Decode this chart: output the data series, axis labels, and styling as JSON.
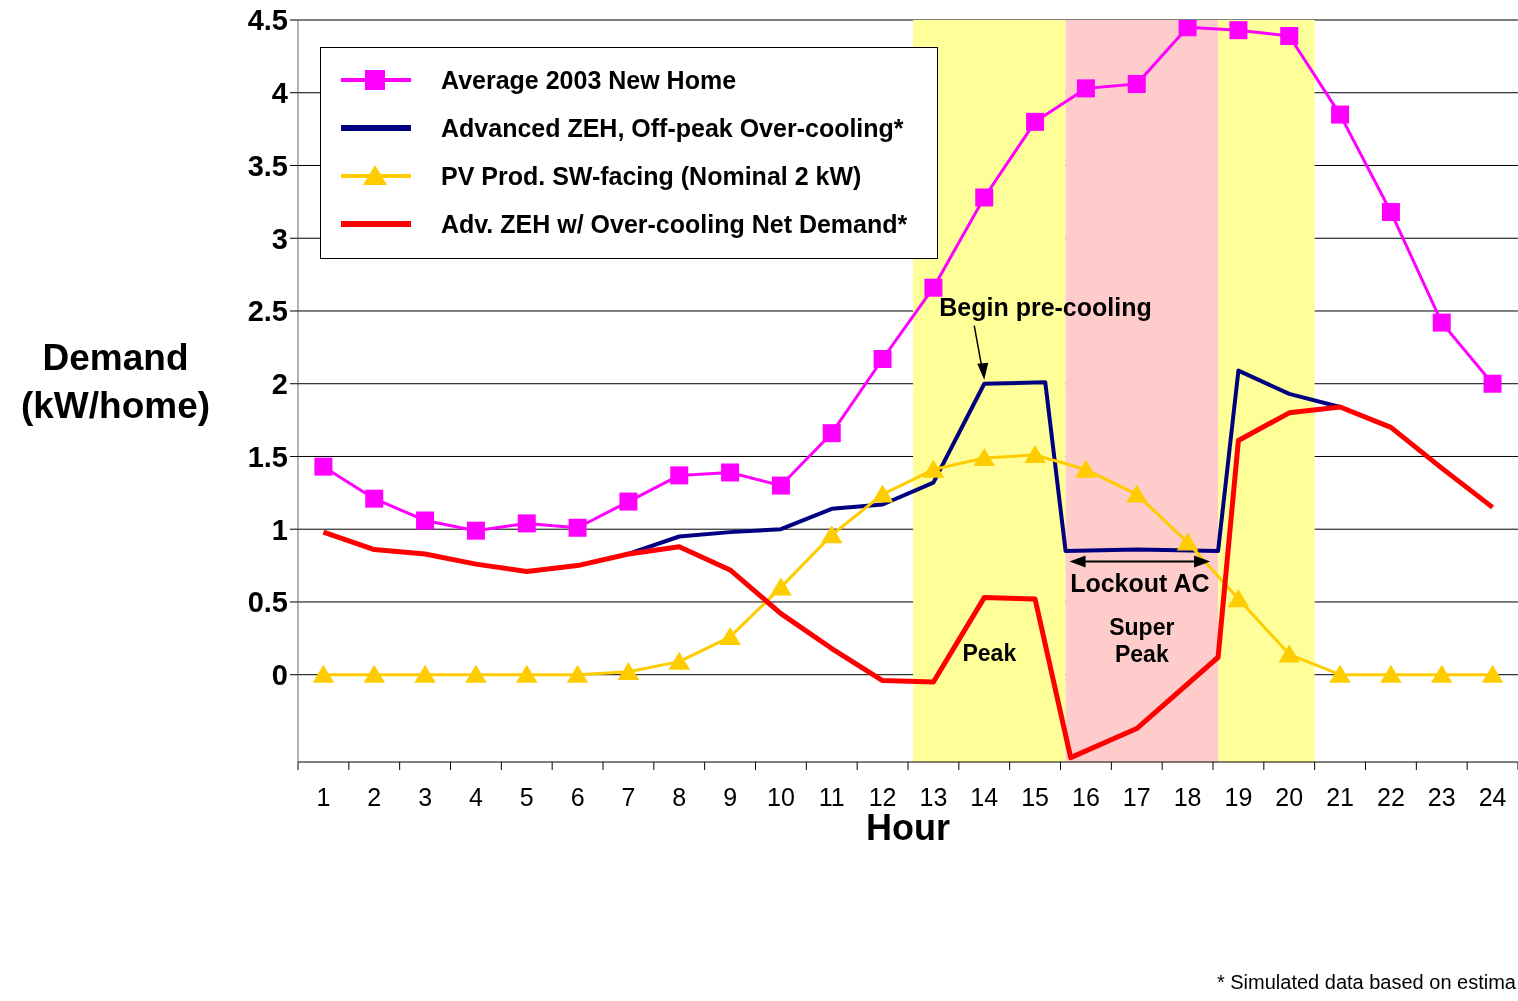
{
  "chart_data": {
    "type": "line",
    "ylabel": "Demand (kW/home)",
    "xlabel": "Hour",
    "xlim": [
      0.5,
      24.5
    ],
    "xticks": [
      {
        "value": 0.5,
        "label": null
      },
      1,
      {
        "value": 1.5,
        "label": null
      },
      2,
      {
        "value": 2.5,
        "label": null
      },
      3,
      {
        "value": 3.5,
        "label": null
      },
      4,
      {
        "value": 4.5,
        "label": null
      },
      5,
      {
        "value": 5.5,
        "label": null
      },
      6,
      {
        "value": 6.5,
        "label": null
      },
      7,
      {
        "value": 7.5,
        "label": null
      },
      8,
      {
        "value": 8.5,
        "label": null
      },
      9,
      {
        "value": 9.5,
        "label": null
      },
      10,
      {
        "value": 10.5,
        "label": null
      },
      11,
      {
        "value": 11.5,
        "label": null
      },
      12,
      {
        "value": 12.5,
        "label": null
      },
      13,
      {
        "value": 13.5,
        "label": null
      },
      14,
      {
        "value": 14.5,
        "label": null
      },
      15,
      {
        "value": 15.5,
        "label": null
      },
      16,
      {
        "value": 16.5,
        "label": null
      },
      17,
      {
        "value": 17.5,
        "label": null
      },
      18,
      {
        "value": 18.5,
        "label": null
      },
      19,
      {
        "value": 19.5,
        "label": null
      },
      20,
      {
        "value": 20.5,
        "label": null
      },
      21,
      {
        "value": 21.5,
        "label": null
      },
      22,
      {
        "value": 22.5,
        "label": null
      },
      23,
      {
        "value": 23.5,
        "label": null
      },
      24,
      {
        "value": 24.5,
        "label": null
      }
    ],
    "ylim": [
      -0.6,
      4.5
    ],
    "yticks": [
      0,
      0.5,
      1,
      1.5,
      2,
      2.5,
      3,
      3.5,
      4,
      4.5
    ],
    "grid": "y",
    "legend": "top left",
    "x": [
      1,
      2,
      3,
      4,
      5,
      6,
      7,
      8,
      9,
      10,
      11,
      12,
      13,
      14,
      15,
      16,
      17,
      18,
      19,
      20,
      21,
      22,
      23,
      24
    ],
    "series": [
      {
        "name": "Average 2003 New Home",
        "color": "#ff00ff",
        "marker": "square",
        "values": [
          1.43,
          1.21,
          1.06,
          0.99,
          1.04,
          1.01,
          1.19,
          1.37,
          1.39,
          1.3,
          1.66,
          2.17,
          2.66,
          3.28,
          3.8,
          4.03,
          4.06,
          4.45,
          4.43,
          4.39,
          3.85,
          3.18,
          2.42,
          2.0
        ]
      },
      {
        "name": "Advanced ZEH, Off-peak Over-cooling*",
        "color": "#000080",
        "marker": "none",
        "x": [
          7,
          8,
          9,
          10,
          11,
          12,
          13,
          14,
          15.2,
          15.6,
          17,
          18.6,
          19,
          20,
          21
        ],
        "values": [
          0.83,
          0.95,
          0.98,
          1.0,
          1.14,
          1.17,
          1.32,
          2.0,
          2.01,
          0.85,
          0.86,
          0.85,
          2.09,
          1.93,
          1.84
        ]
      },
      {
        "name": "PV Prod. SW-facing (Nominal 2 kW)",
        "color": "#ffcc00",
        "marker": "triangle",
        "values": [
          0,
          0,
          0,
          0,
          0,
          0,
          0.02,
          0.09,
          0.26,
          0.6,
          0.96,
          1.24,
          1.41,
          1.49,
          1.51,
          1.41,
          1.24,
          0.91,
          0.52,
          0.14,
          0,
          0,
          0,
          0
        ]
      },
      {
        "name": "Adv. ZEH w/ Over-cooling Net Demand*",
        "color": "#ff0000",
        "marker": "none",
        "x": [
          1,
          2,
          3,
          4,
          5,
          6,
          7,
          8,
          9,
          10,
          11,
          12,
          13,
          14,
          15,
          15.7,
          17,
          18.6,
          19,
          20,
          21,
          22,
          23,
          24
        ],
        "values": [
          0.98,
          0.86,
          0.83,
          0.76,
          0.71,
          0.75,
          0.83,
          0.88,
          0.72,
          0.42,
          0.18,
          -0.04,
          -0.05,
          0.53,
          0.52,
          -0.57,
          -0.37,
          0.12,
          1.61,
          1.8,
          1.84,
          1.7,
          1.42,
          1.15
        ]
      }
    ],
    "bands": [
      {
        "axis": "x",
        "from": 12.6,
        "to": 15.6,
        "label": "Peak",
        "color": "#ffff99"
      },
      {
        "axis": "x",
        "from": 15.6,
        "to": 18.6,
        "label": "Super Peak",
        "color": "#ffcccc"
      },
      {
        "axis": "x",
        "from": 18.6,
        "to": 20.5,
        "color": "#ffff99"
      }
    ],
    "annotations": [
      {
        "text": "Begin pre-cooling",
        "x": 14,
        "y": 2.0
      },
      {
        "text": "Lockout AC",
        "x": 17,
        "y": 0.86
      },
      "* Simulated data based on estima"
    ]
  }
}
